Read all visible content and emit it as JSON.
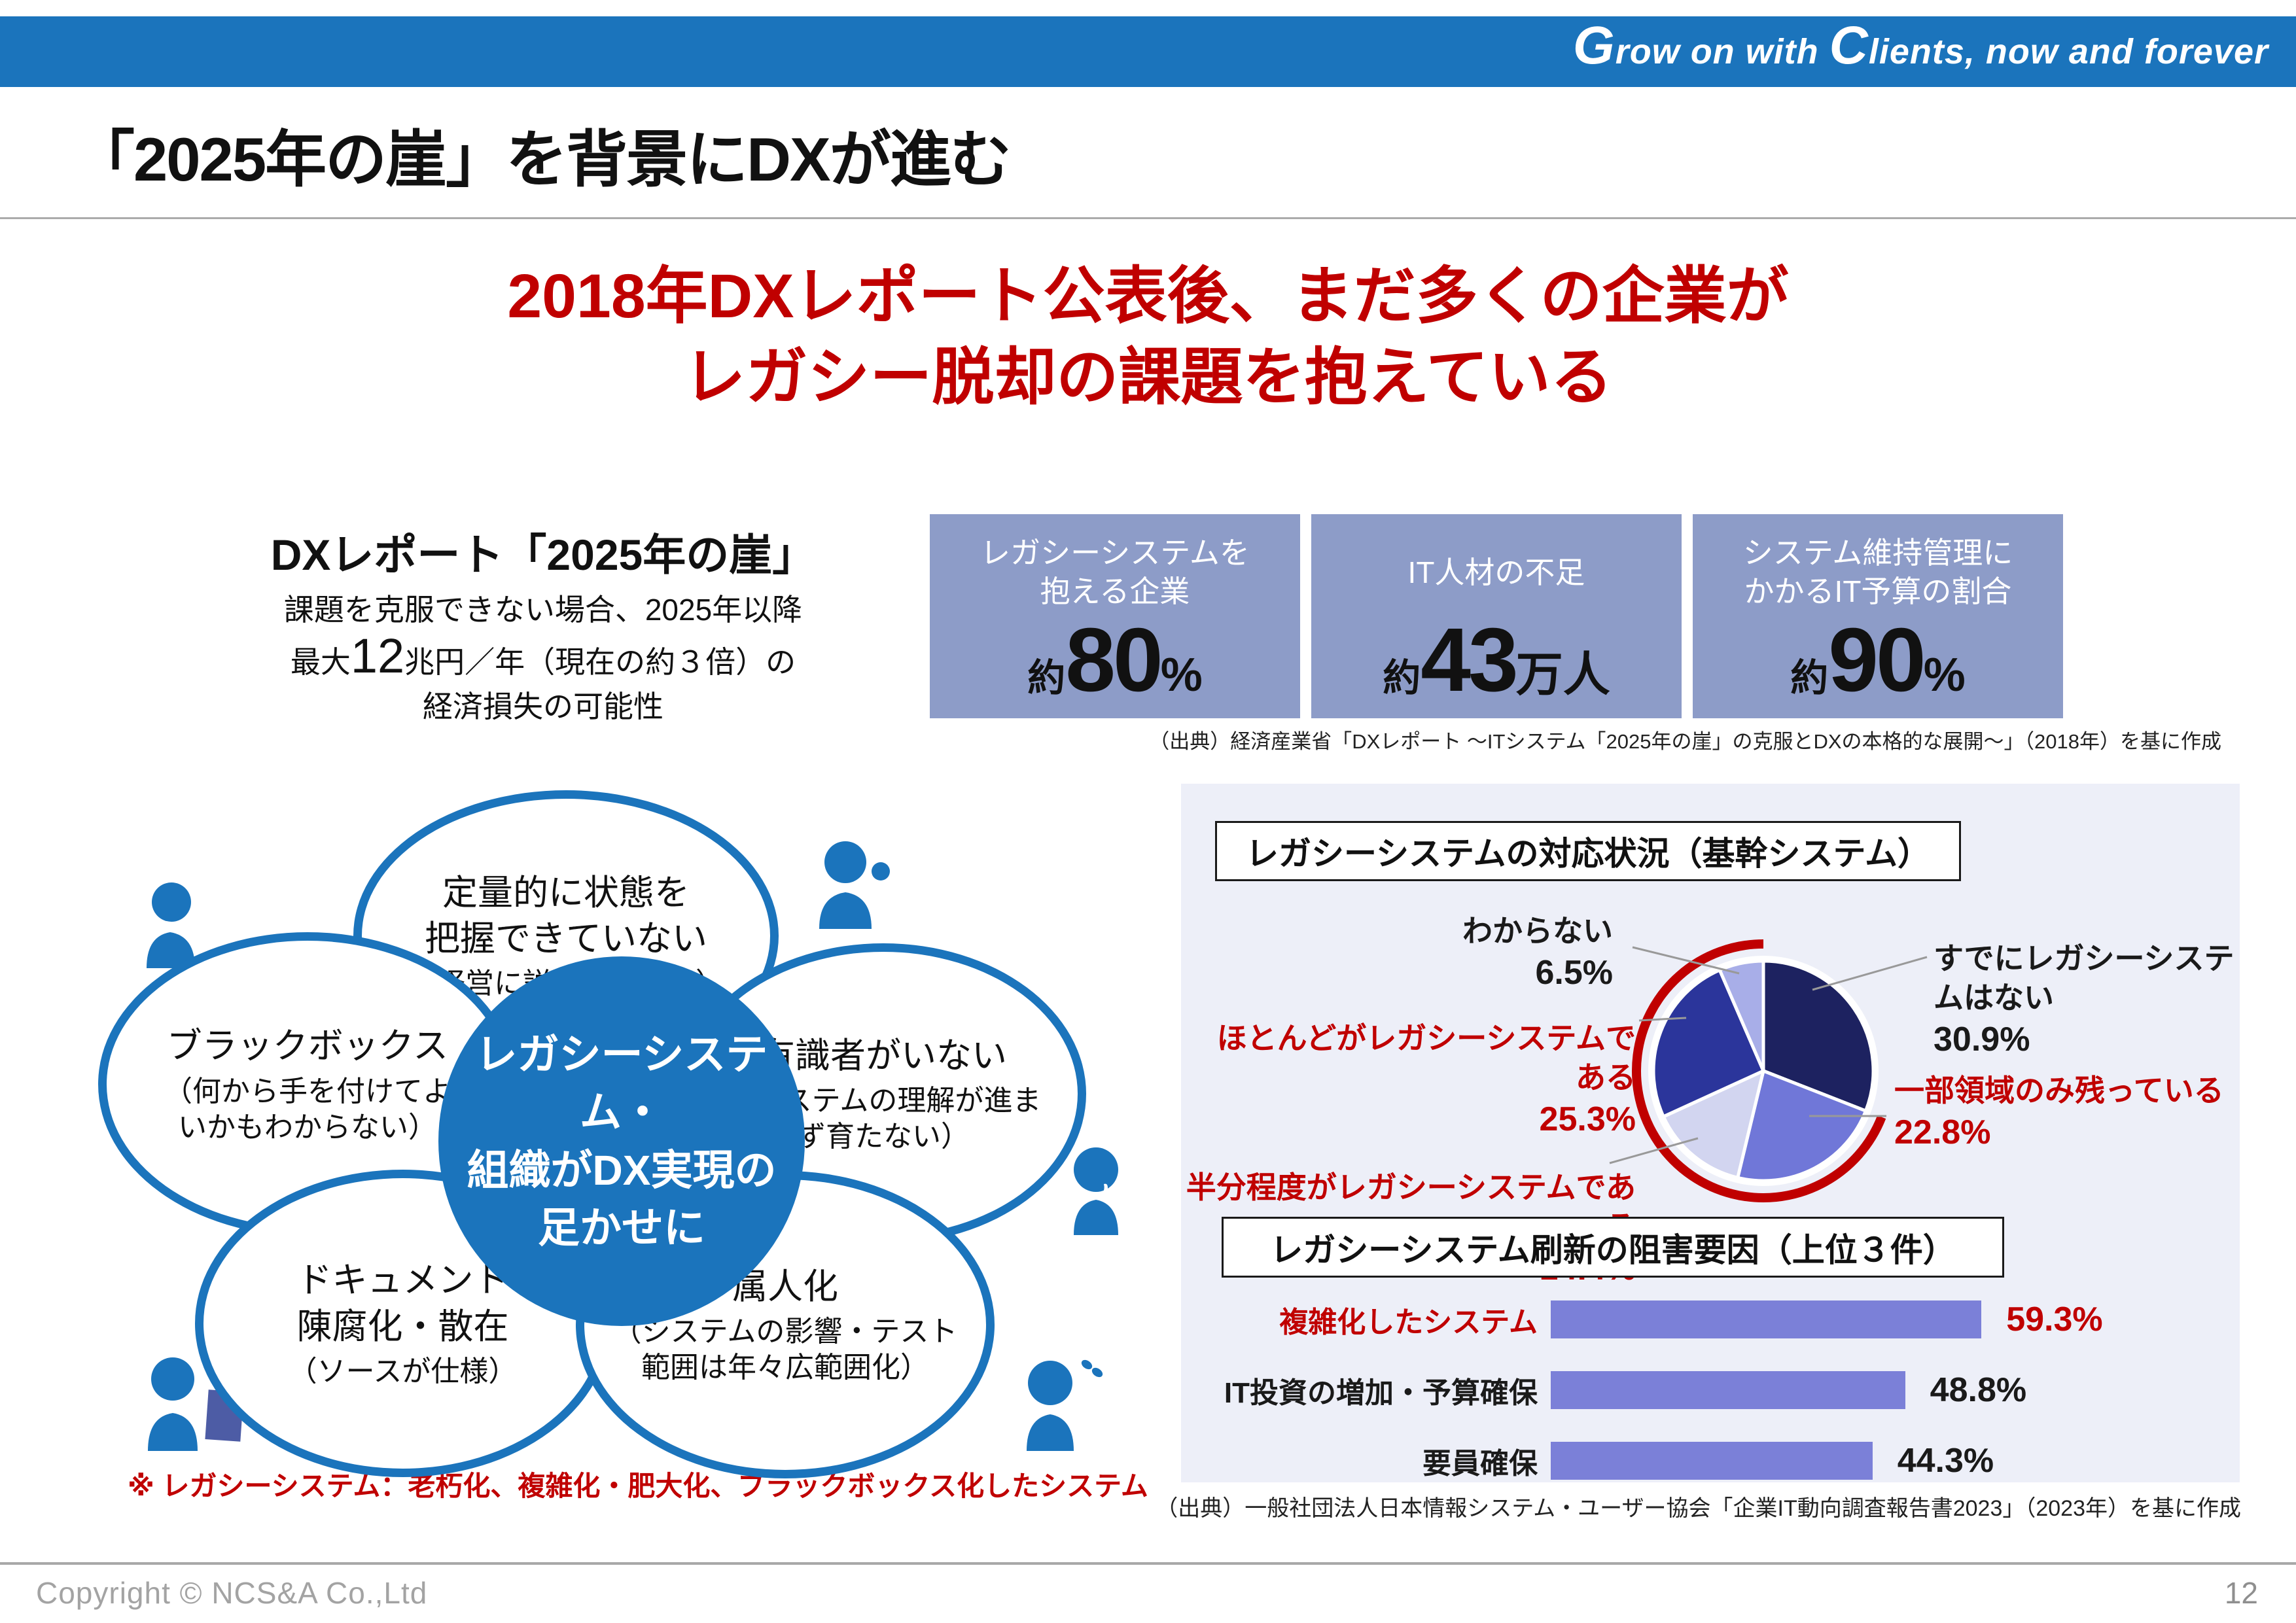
{
  "brand": {
    "tagline_g": "G",
    "tagline_rest1": "row on with ",
    "tagline_c": "C",
    "tagline_rest2": "lients, now and forever",
    "bar_color": "#1B74BC"
  },
  "slide": {
    "title": "「2025年の崖」を背景にDXが進む",
    "page_number": "12",
    "copyright": "Copyright © NCS&A Co.,Ltd"
  },
  "headline": {
    "line1": "2018年DXレポート公表後、まだ多くの企業が",
    "line2": "レガシー脱却の課題を抱えている",
    "color": "#C00000"
  },
  "dx_report": {
    "heading": "DXレポート「2025年の崖」",
    "body_line1": "課題を克服できない場合、2025年以降",
    "body_line2_pre": "最大",
    "body_line2_big": "12",
    "body_line2_post": "兆円／年（現在の約３倍）の",
    "body_line3": "経済損失の可能性"
  },
  "stat_boxes": [
    {
      "heading": "レガシーシステムを\n抱える企業",
      "prefix": "約",
      "number": "80",
      "suffix": "%"
    },
    {
      "heading": "IT人材の不足",
      "prefix": "約",
      "number": "43",
      "suffix": "万人"
    },
    {
      "heading": "システム維持管理に\nかかるIT予算の割合",
      "prefix": "約",
      "number": "90",
      "suffix": "%"
    }
  ],
  "source_top": "（出典）経済産業省「DXレポート ～ITシステム「2025年の崖」の克服とDXの本格的な展開～」（2018年）を基に作成",
  "flower": {
    "center": "レガシーシステム・\n組織がDX実現の\n足かせに",
    "petals": [
      {
        "title": "定量的に状態を\n把握できていない",
        "note": "（経営に説明できない）"
      },
      {
        "title": "ブラックボックス",
        "note": "（何から手を付けてよ\nいかもわからない）"
      },
      {
        "title": "有識者がいない",
        "note": "（システムの理解が進ま\nず育たない）"
      },
      {
        "title": "ドキュメント\n陳腐化・散在",
        "note": "（ソースが仕様）"
      },
      {
        "title": "属人化",
        "note": "（システムの影響・テスト\n範囲は年々広範囲化）"
      }
    ],
    "note": "※ レガシーシステム：老朽化、複雑化・肥大化、ブラックボックス化したシステム"
  },
  "panel": {
    "source": "（出典）一般社団法人日本情報システム・ユーザー協会「企業IT動向調査報告書2023」（2023年）を基に作成"
  },
  "chart_data": [
    {
      "type": "pie",
      "title": "レガシーシステムの対応状況（基幹システム）",
      "labels": [
        "すでにレガシーシステムはない",
        "一部領域のみ残っている",
        "半分程度がレガシーシステムである",
        "ほとんどがレガシーシステムである",
        "わからない"
      ],
      "values": [
        30.9,
        22.8,
        14.4,
        25.3,
        6.5
      ],
      "value_labels": [
        "30.9%",
        "22.8%",
        "14.4%",
        "25.3%",
        "6.5%"
      ],
      "colors": [
        "#1D2260",
        "#7077D8",
        "#D2D5F0",
        "#2B359B",
        "#A8AEE8"
      ],
      "label_colors": [
        "#1a1a1a",
        "#C00000",
        "#C00000",
        "#C00000",
        "#1a1a1a"
      ],
      "start_angle_deg": 0,
      "legend_position": "around",
      "highlight_arc": {
        "slices": [
          1,
          2,
          3,
          4
        ],
        "color": "#C00000"
      }
    },
    {
      "type": "bar",
      "title": "レガシーシステム刷新の阻害要因（上位３件）",
      "categories": [
        "複雑化したシステム",
        "IT投資の増加・予算確保",
        "要員確保"
      ],
      "values": [
        59.3,
        48.8,
        44.3
      ],
      "value_labels": [
        "59.3%",
        "48.8%",
        "44.3%"
      ],
      "xlim": [
        0,
        100
      ],
      "bar_color": "#7B80D8",
      "category_colors": [
        "#C00000",
        "#1a1a1a",
        "#1a1a1a"
      ],
      "value_colors": [
        "#C00000",
        "#1a1a1a",
        "#1a1a1a"
      ],
      "grid": false
    }
  ]
}
